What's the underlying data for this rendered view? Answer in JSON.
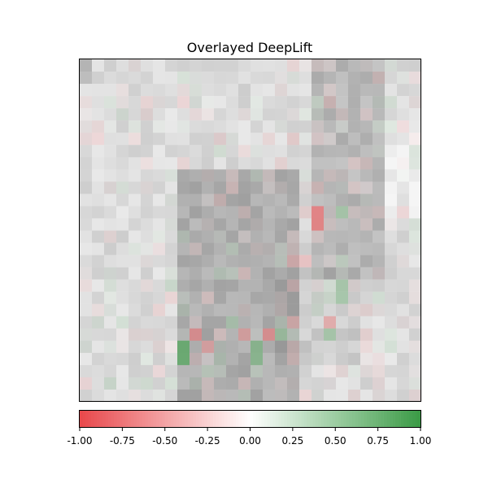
{
  "chart_data": {
    "type": "heatmap",
    "title": "Overlayed DeepLift",
    "grid_size": [
      28,
      28
    ],
    "base_image": "grayscale photo",
    "overlay_method": "DeepLift attribution",
    "colorbar": {
      "orientation": "horizontal",
      "range": [
        -1.0,
        1.0
      ],
      "colors": {
        "negative": "#e8474a",
        "center": "#ffffff",
        "positive": "#3a9a45"
      },
      "ticks": [
        "-1.00",
        "-0.75",
        "-0.50",
        "-0.25",
        "0.00",
        "0.25",
        "0.50",
        "0.75",
        "1.00"
      ]
    },
    "notable_attributions": [
      {
        "row": 12,
        "col": 19,
        "value": -0.8
      },
      {
        "row": 13,
        "col": 19,
        "value": -0.8
      },
      {
        "row": 12,
        "col": 21,
        "value": 0.6
      },
      {
        "row": 16,
        "col": 17,
        "value": -0.5
      },
      {
        "row": 16,
        "col": 18,
        "value": -0.5
      },
      {
        "row": 18,
        "col": 21,
        "value": 0.6
      },
      {
        "row": 19,
        "col": 21,
        "value": 0.6
      },
      {
        "row": 21,
        "col": 12,
        "value": 0.5
      },
      {
        "row": 22,
        "col": 15,
        "value": -0.7
      },
      {
        "row": 22,
        "col": 16,
        "value": 0.6
      },
      {
        "row": 21,
        "col": 17,
        "value": -0.5
      },
      {
        "row": 22,
        "col": 20,
        "value": 0.6
      },
      {
        "row": 23,
        "col": 8,
        "value": 0.85
      },
      {
        "row": 24,
        "col": 8,
        "value": 0.85
      },
      {
        "row": 22,
        "col": 9,
        "value": -0.7
      },
      {
        "row": 23,
        "col": 10,
        "value": -0.6
      },
      {
        "row": 22,
        "col": 13,
        "value": -0.6
      },
      {
        "row": 23,
        "col": 14,
        "value": 0.7
      },
      {
        "row": 24,
        "col": 14,
        "value": 0.7
      },
      {
        "row": 21,
        "col": 20,
        "value": -0.6
      }
    ]
  },
  "colors": {
    "negative": "#e8474a",
    "positive": "#3a9a45",
    "axis": "#000000"
  }
}
